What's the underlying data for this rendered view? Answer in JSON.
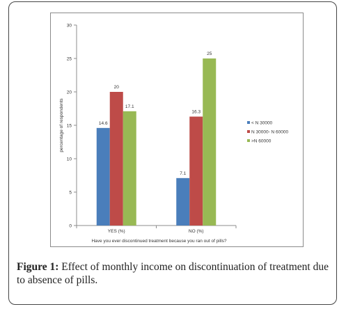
{
  "chart_data": {
    "type": "bar",
    "categories": [
      "YES (%)",
      "NO (%)"
    ],
    "series": [
      {
        "name": "< N 30000",
        "values": [
          14.6,
          7.1
        ],
        "color": "#4a7ebb"
      },
      {
        "name": "N 30000- N 60000",
        "values": [
          20,
          16.3
        ],
        "color": "#be4b48"
      },
      {
        "name": ">N 60000",
        "values": [
          17.1,
          25
        ],
        "color": "#98b954"
      }
    ],
    "value_labels": [
      [
        "14.6",
        "7.1"
      ],
      [
        "20",
        "16.3"
      ],
      [
        "17.1",
        "25"
      ]
    ],
    "ylabel": "percentage of respondents",
    "xlabel": "Have you ever discontinued treatment because you ran out of pills?",
    "ylim": [
      0,
      30
    ],
    "yticks": [
      0,
      5,
      10,
      15,
      20,
      25,
      30
    ],
    "legend_position": "right",
    "grid": false
  },
  "caption": {
    "label": "Figure 1:",
    "text": " Effect of monthly income on discontinuation of treatment due to absence of pills."
  }
}
